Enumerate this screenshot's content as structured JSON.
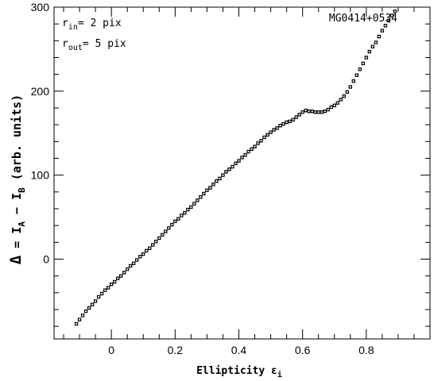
{
  "chart_data": {
    "type": "scatter",
    "title": "",
    "xlabel": {
      "main": "Ellipticity ε",
      "sub": "i"
    },
    "ylabel": {
      "delta": "Δ",
      "eq": " = I",
      "subA": "A",
      "minus": " − I",
      "subB": "B",
      "units": " (arb. units)"
    },
    "xlim": [
      -0.18,
      1.0
    ],
    "ylim": [
      -95,
      300
    ],
    "x_ticks": [
      0,
      0.2,
      0.4,
      0.6,
      0.8
    ],
    "x_tick_labels": [
      "0",
      "0.2",
      "0.4",
      "0.6",
      "0.8"
    ],
    "y_ticks": [
      0,
      100,
      200,
      300
    ],
    "y_tick_labels": [
      "0",
      "100",
      "200",
      "300"
    ],
    "grid": false,
    "legend": "none",
    "annotations": {
      "object": "MG0414+0534",
      "r_in": {
        "r": "r",
        "sub": "in",
        "text": "= 2 pix"
      },
      "r_out": {
        "r": "r",
        "sub": "out",
        "text": "= 5 pix"
      }
    },
    "series": [
      {
        "marker": "square",
        "color": "#000000",
        "x": [
          -0.11,
          -0.1,
          -0.09,
          -0.08,
          -0.07,
          -0.06,
          -0.05,
          -0.04,
          -0.03,
          -0.02,
          -0.01,
          0,
          0.01,
          0.02,
          0.03,
          0.04,
          0.05,
          0.06,
          0.07,
          0.08,
          0.09,
          0.1,
          0.11,
          0.12,
          0.13,
          0.14,
          0.15,
          0.16,
          0.17,
          0.18,
          0.19,
          0.2,
          0.21,
          0.22,
          0.23,
          0.24,
          0.25,
          0.26,
          0.27,
          0.28,
          0.29,
          0.3,
          0.31,
          0.32,
          0.33,
          0.34,
          0.35,
          0.36,
          0.37,
          0.38,
          0.39,
          0.4,
          0.41,
          0.42,
          0.43,
          0.44,
          0.45,
          0.46,
          0.47,
          0.48,
          0.49,
          0.5,
          0.51,
          0.52,
          0.53,
          0.54,
          0.55,
          0.56,
          0.57,
          0.58,
          0.59,
          0.6,
          0.61,
          0.62,
          0.63,
          0.64,
          0.65,
          0.66,
          0.67,
          0.68,
          0.69,
          0.7,
          0.71,
          0.72,
          0.73,
          0.74,
          0.75,
          0.76,
          0.77,
          0.78,
          0.79,
          0.8,
          0.81,
          0.82,
          0.83,
          0.84,
          0.85,
          0.86,
          0.87,
          0.88,
          0.89
        ],
        "y": [
          -77,
          -72,
          -67,
          -62,
          -58,
          -54,
          -50,
          -45,
          -41,
          -37,
          -34,
          -30,
          -27,
          -23,
          -20,
          -16,
          -12,
          -8,
          -5,
          -1,
          3,
          6,
          10,
          13,
          17,
          21,
          25,
          29,
          33,
          37,
          41,
          45,
          48,
          52,
          55,
          59,
          62,
          66,
          70,
          74,
          78,
          82,
          85,
          89,
          93,
          96,
          100,
          104,
          107,
          110,
          114,
          117,
          121,
          124,
          128,
          131,
          134,
          138,
          141,
          145,
          148,
          151,
          154,
          156,
          159,
          161,
          163,
          164,
          166,
          169,
          172,
          175,
          177,
          176,
          176,
          175,
          175,
          175,
          176,
          178,
          181,
          183,
          186,
          190,
          194,
          199,
          205,
          212,
          219,
          226,
          233,
          240,
          247,
          253,
          258,
          265,
          272,
          278,
          284,
          290,
          295
        ]
      }
    ]
  }
}
